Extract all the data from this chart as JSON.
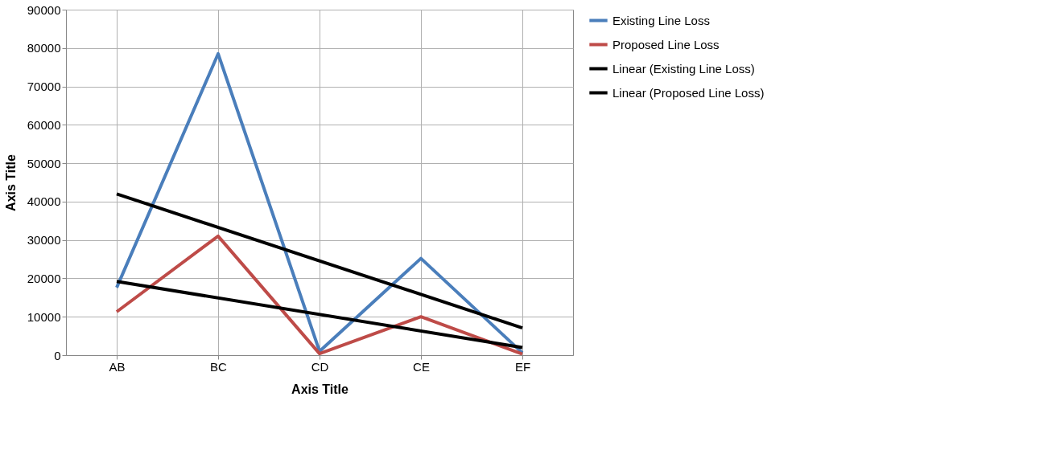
{
  "chart_data": {
    "type": "line",
    "xlabel": "Axis Title",
    "ylabel": "Axis Title",
    "categories": [
      "AB",
      "BC",
      "CD",
      "CE",
      "EF"
    ],
    "series": [
      {
        "name": "Existing Line Loss",
        "color": "#4a7ebb",
        "values": [
          17600,
          78500,
          1000,
          25200,
          600
        ]
      },
      {
        "name": "Proposed Line Loss",
        "color": "#be4b48",
        "values": [
          11300,
          31000,
          400,
          10000,
          300
        ]
      },
      {
        "name": "Linear (Existing Line Loss)",
        "color": "#000000",
        "type": "line",
        "x": [
          "AB",
          "EF"
        ],
        "values": [
          42000,
          7100
        ]
      },
      {
        "name": "Linear (Proposed Line Loss)",
        "color": "#000000",
        "type": "line",
        "x": [
          "AB",
          "EF"
        ],
        "values": [
          19200,
          2000
        ]
      }
    ],
    "ylim": [
      0,
      90000
    ],
    "yticks": [
      0,
      10000,
      20000,
      30000,
      40000,
      50000,
      60000,
      70000,
      80000,
      90000
    ],
    "grid": true,
    "legend": "right",
    "marker": "none",
    "line_style": "solid"
  }
}
